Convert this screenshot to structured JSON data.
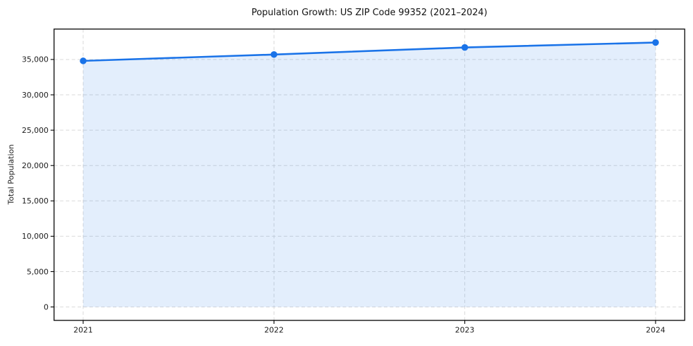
{
  "chart_data": {
    "type": "area",
    "title": "Population Growth: US ZIP Code 99352 (2021–2024)",
    "xlabel": "",
    "ylabel": "Total Population",
    "categories": [
      "2021",
      "2022",
      "2023",
      "2024"
    ],
    "series": [
      {
        "name": "Total Population",
        "values": [
          34800,
          35700,
          36700,
          37400
        ]
      }
    ],
    "yticks": [
      0,
      5000,
      10000,
      15000,
      20000,
      25000,
      30000,
      35000
    ],
    "ylim": [
      -1900,
      39300
    ],
    "grid": true,
    "grid_style": "dashed",
    "legend": "none",
    "marker": "circle",
    "colors": {
      "line": "#1a73e8",
      "fill": "#1a73e8",
      "fill_opacity": 0.12,
      "grid": "#d9d9d9",
      "axis": "#000000",
      "text": "#1a1a1a",
      "background": "#ffffff"
    }
  }
}
